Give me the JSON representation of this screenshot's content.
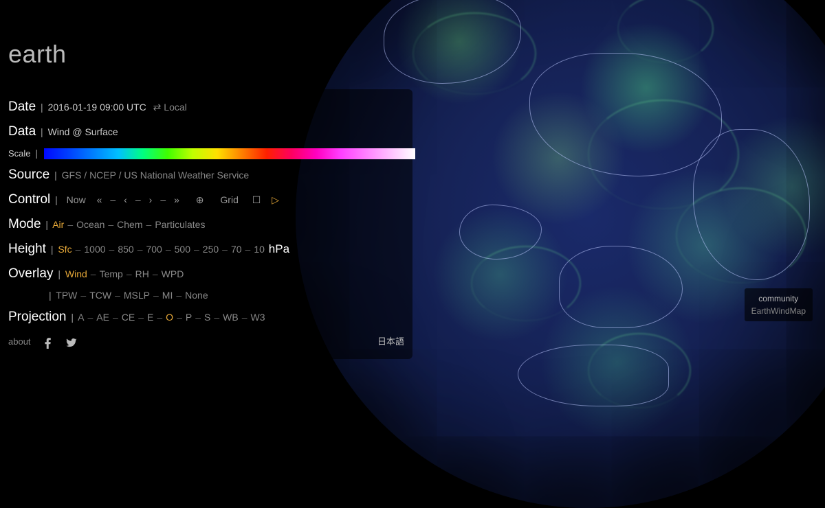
{
  "title": "earth",
  "date": {
    "label": "Date",
    "value": "2016-01-19 09:00 UTC",
    "localToggle": "Local"
  },
  "data": {
    "label": "Data",
    "value": "Wind @ Surface"
  },
  "scale": {
    "label": "Scale",
    "gradient": [
      "#0008ff",
      "#0040ff",
      "#0080ff",
      "#00c0ff",
      "#00ff80",
      "#40ff00",
      "#c0ff00",
      "#ffe000",
      "#ff8000",
      "#ff2000",
      "#ff0060",
      "#ff00c0",
      "#ff40ff",
      "#ff80ff",
      "#ffc0ff",
      "#ffffff"
    ]
  },
  "source": {
    "label": "Source",
    "value": "GFS / NCEP / US National Weather Service"
  },
  "control": {
    "label": "Control",
    "now": "Now",
    "buttons": [
      "«",
      "–",
      "‹",
      "–",
      "›",
      "–",
      "»"
    ],
    "locate": "⊕",
    "grid": "Grid",
    "box": "☐",
    "play": "▷",
    "play_color": "#e6a838"
  },
  "mode": {
    "label": "Mode",
    "items": [
      "Air",
      "Ocean",
      "Chem",
      "Particulates"
    ],
    "selected": 0
  },
  "height": {
    "label": "Height",
    "items": [
      "Sfc",
      "1000",
      "850",
      "700",
      "500",
      "250",
      "70",
      "10"
    ],
    "selected": 0,
    "unit": "hPa"
  },
  "overlay": {
    "label": "Overlay",
    "row1": [
      "Wind",
      "Temp",
      "RH",
      "WPD"
    ],
    "row1_selected": 0,
    "row2": [
      "TPW",
      "TCW",
      "MSLP",
      "MI",
      "None"
    ]
  },
  "projection": {
    "label": "Projection",
    "items": [
      "A",
      "AE",
      "CE",
      "E",
      "O",
      "P",
      "S",
      "WB",
      "W3"
    ],
    "selected": 4
  },
  "footer": {
    "about": "about",
    "lang": "日本語"
  },
  "badge": {
    "line1": "community",
    "line2": "EarthWindMap"
  },
  "colors": {
    "bg": "#000000",
    "panel_bg": "rgba(0,0,0,0.55)",
    "text": "#eeeeee",
    "dim": "#888888",
    "selected": "#e6a838",
    "globe_ocean": "#162358",
    "globe_wind": "#5ce68c",
    "coastline": "#bec8ff"
  }
}
